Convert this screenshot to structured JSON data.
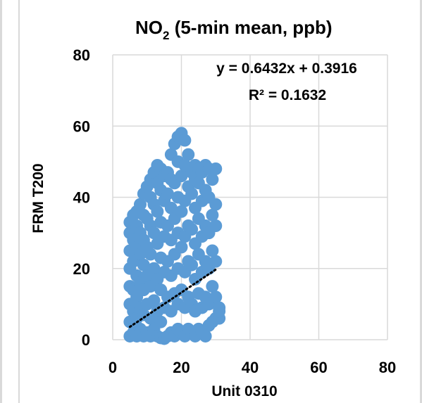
{
  "chart_data": {
    "type": "scatter",
    "title_main": "NO",
    "title_sub": "2",
    "title_rest": " (5-min mean, ppb)",
    "xlabel": "Unit 0310",
    "ylabel": "FRM T200",
    "xlim": [
      0,
      80
    ],
    "ylim": [
      0,
      80
    ],
    "xticks": [
      "0",
      "20",
      "40",
      "60",
      "80"
    ],
    "yticks": [
      "0",
      "20",
      "40",
      "60",
      "80"
    ],
    "grid": true,
    "point_color": "#5b9bd5",
    "trendline_color": "#000000",
    "trendline": {
      "slope": 0.6432,
      "intercept": 0.3916,
      "x_range": [
        5,
        30
      ]
    },
    "equation_label": "y = 0.6432x + 0.3916",
    "r2_label": "R² = 0.1632",
    "series": [
      {
        "points": [
          [
            5,
            1
          ],
          [
            5,
            5
          ],
          [
            5,
            10
          ],
          [
            5,
            15
          ],
          [
            5,
            20
          ],
          [
            5,
            25
          ],
          [
            5,
            30
          ],
          [
            5,
            33
          ],
          [
            6,
            2
          ],
          [
            6,
            8
          ],
          [
            6,
            14
          ],
          [
            6,
            22
          ],
          [
            6,
            28
          ],
          [
            6,
            35
          ],
          [
            7,
            1
          ],
          [
            7,
            6
          ],
          [
            7,
            12
          ],
          [
            7,
            18
          ],
          [
            7,
            26
          ],
          [
            7,
            32
          ],
          [
            7,
            36
          ],
          [
            8,
            3
          ],
          [
            8,
            9
          ],
          [
            8,
            16
          ],
          [
            8,
            24
          ],
          [
            8,
            30
          ],
          [
            8,
            38
          ],
          [
            9,
            1
          ],
          [
            9,
            7
          ],
          [
            9,
            14
          ],
          [
            9,
            21
          ],
          [
            9,
            28
          ],
          [
            9,
            35
          ],
          [
            9,
            41
          ],
          [
            10,
            2
          ],
          [
            10,
            10
          ],
          [
            10,
            18
          ],
          [
            10,
            26
          ],
          [
            10,
            34
          ],
          [
            10,
            43
          ],
          [
            11,
            1
          ],
          [
            11,
            6
          ],
          [
            11,
            15
          ],
          [
            11,
            24
          ],
          [
            11,
            32
          ],
          [
            11,
            40
          ],
          [
            11,
            45
          ],
          [
            12,
            3
          ],
          [
            12,
            11
          ],
          [
            12,
            20
          ],
          [
            12,
            30
          ],
          [
            12,
            38
          ],
          [
            12,
            47
          ],
          [
            13,
            1
          ],
          [
            13,
            8
          ],
          [
            13,
            17
          ],
          [
            13,
            27
          ],
          [
            13,
            36
          ],
          [
            13,
            44
          ],
          [
            13,
            49
          ],
          [
            14,
            0.5
          ],
          [
            14,
            5
          ],
          [
            14,
            14
          ],
          [
            14,
            23
          ],
          [
            14,
            33
          ],
          [
            14,
            42
          ],
          [
            14,
            48
          ],
          [
            15,
            0.3
          ],
          [
            15,
            9
          ],
          [
            15,
            19
          ],
          [
            15,
            29
          ],
          [
            15,
            39
          ],
          [
            15,
            46
          ],
          [
            16,
            1
          ],
          [
            16,
            12
          ],
          [
            16,
            22
          ],
          [
            16,
            32
          ],
          [
            16,
            41
          ],
          [
            16,
            47
          ],
          [
            17,
            2
          ],
          [
            17,
            8
          ],
          [
            17,
            18
          ],
          [
            17,
            28
          ],
          [
            17,
            37
          ],
          [
            17,
            45
          ],
          [
            17,
            52
          ],
          [
            18,
            1
          ],
          [
            18,
            13
          ],
          [
            18,
            24
          ],
          [
            18,
            34
          ],
          [
            18,
            44
          ],
          [
            18,
            55
          ],
          [
            19,
            3
          ],
          [
            19,
            10
          ],
          [
            19,
            20
          ],
          [
            19,
            30
          ],
          [
            19,
            40
          ],
          [
            19,
            50
          ],
          [
            19,
            57
          ],
          [
            20,
            2
          ],
          [
            20,
            14
          ],
          [
            20,
            26
          ],
          [
            20,
            36
          ],
          [
            20,
            46
          ],
          [
            20,
            58
          ],
          [
            21,
            1
          ],
          [
            21,
            9
          ],
          [
            21,
            19
          ],
          [
            21,
            29
          ],
          [
            21,
            39
          ],
          [
            21,
            49
          ],
          [
            21,
            56
          ],
          [
            22,
            3
          ],
          [
            22,
            12
          ],
          [
            22,
            22
          ],
          [
            22,
            32
          ],
          [
            22,
            43
          ],
          [
            22,
            52
          ],
          [
            23,
            2
          ],
          [
            23,
            10
          ],
          [
            23,
            21
          ],
          [
            23,
            31
          ],
          [
            23,
            41
          ],
          [
            23,
            47
          ],
          [
            24,
            1
          ],
          [
            24,
            8
          ],
          [
            24,
            17
          ],
          [
            24,
            27
          ],
          [
            24,
            37
          ],
          [
            24,
            45
          ],
          [
            24,
            49
          ],
          [
            25,
            3
          ],
          [
            25,
            13
          ],
          [
            25,
            24
          ],
          [
            25,
            34
          ],
          [
            25,
            44
          ],
          [
            25,
            48
          ],
          [
            26,
            2
          ],
          [
            26,
            9
          ],
          [
            26,
            19
          ],
          [
            26,
            29
          ],
          [
            26,
            39
          ],
          [
            26,
            47
          ],
          [
            27,
            1
          ],
          [
            27,
            12
          ],
          [
            27,
            22
          ],
          [
            27,
            32
          ],
          [
            27,
            42
          ],
          [
            27,
            49
          ],
          [
            28,
            4
          ],
          [
            28,
            10
          ],
          [
            28,
            20
          ],
          [
            28,
            30
          ],
          [
            28,
            40
          ],
          [
            28,
            48
          ],
          [
            29,
            5
          ],
          [
            29,
            15
          ],
          [
            29,
            25
          ],
          [
            29,
            35
          ],
          [
            29,
            45
          ],
          [
            30,
            6
          ],
          [
            30,
            12
          ],
          [
            30,
            22
          ],
          [
            30,
            32
          ],
          [
            30,
            38
          ],
          [
            30,
            48
          ],
          [
            31,
            6
          ],
          [
            31,
            8
          ],
          [
            31,
            9
          ]
        ]
      }
    ]
  }
}
